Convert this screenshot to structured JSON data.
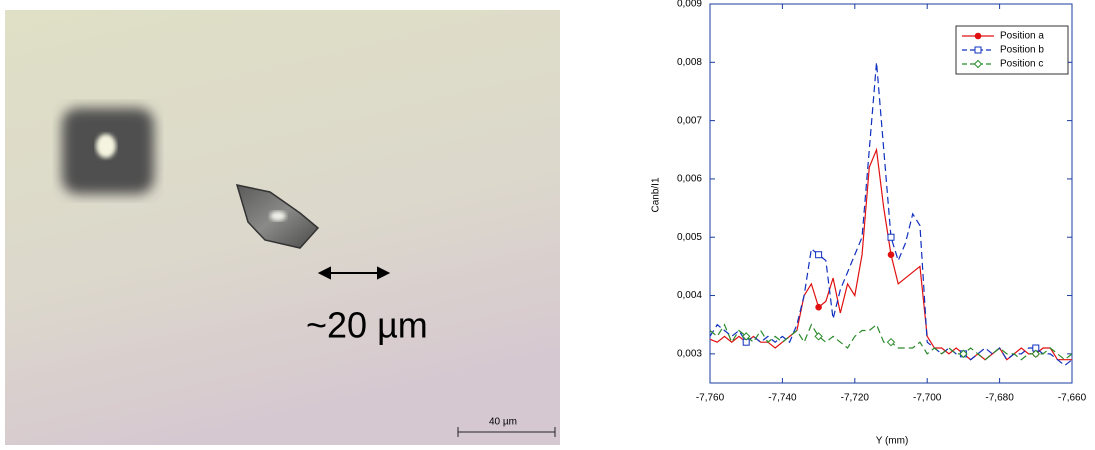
{
  "image": {
    "annotation": "~20 µm",
    "scale_bar": "40 µm"
  },
  "chart_data": {
    "type": "line",
    "x_label": "Y (mm)",
    "y_label": "Canb/I1",
    "x": [
      -7.76,
      -7.758,
      -7.756,
      -7.754,
      -7.752,
      -7.75,
      -7.748,
      -7.746,
      -7.744,
      -7.742,
      -7.74,
      -7.738,
      -7.736,
      -7.734,
      -7.732,
      -7.73,
      -7.728,
      -7.726,
      -7.724,
      -7.722,
      -7.72,
      -7.718,
      -7.716,
      -7.714,
      -7.712,
      -7.71,
      -7.708,
      -7.706,
      -7.704,
      -7.702,
      -7.7,
      -7.698,
      -7.696,
      -7.694,
      -7.692,
      -7.69,
      -7.688,
      -7.686,
      -7.684,
      -7.682,
      -7.68,
      -7.678,
      -7.676,
      -7.674,
      -7.672,
      -7.67,
      -7.668,
      -7.666,
      -7.664,
      -7.662,
      -7.66
    ],
    "series": [
      {
        "name": "Position a",
        "color": "#e01010",
        "line_style": "solid",
        "marker": "circle",
        "values": [
          0.00325,
          0.0032,
          0.0033,
          0.0032,
          0.0033,
          0.0032,
          0.0033,
          0.0032,
          0.0032,
          0.0031,
          0.0032,
          0.0033,
          0.0034,
          0.004,
          0.0042,
          0.0038,
          0.0039,
          0.0043,
          0.0037,
          0.0042,
          0.004,
          0.0047,
          0.0062,
          0.0065,
          0.0055,
          0.0047,
          0.0042,
          0.0043,
          0.0044,
          0.0045,
          0.0033,
          0.0031,
          0.0031,
          0.003,
          0.0031,
          0.003,
          0.0029,
          0.003,
          0.0029,
          0.003,
          0.0031,
          0.0029,
          0.003,
          0.0031,
          0.003,
          0.003,
          0.0031,
          0.0031,
          0.0029,
          0.0029,
          0.0029
        ]
      },
      {
        "name": "Position b",
        "color": "#1030c0",
        "line_style": "dashed",
        "marker": "square",
        "values": [
          0.0033,
          0.0035,
          0.0034,
          0.0033,
          0.0034,
          0.0032,
          0.0033,
          0.0032,
          0.0033,
          0.0032,
          0.0033,
          0.0032,
          0.0035,
          0.004,
          0.0048,
          0.0047,
          0.0046,
          0.0036,
          0.0041,
          0.0044,
          0.0047,
          0.005,
          0.0065,
          0.008,
          0.0065,
          0.005,
          0.0046,
          0.0049,
          0.0054,
          0.0052,
          0.0032,
          0.0031,
          0.003,
          0.0031,
          0.003,
          0.003,
          0.0029,
          0.003,
          0.0031,
          0.003,
          0.0031,
          0.0029,
          0.003,
          0.003,
          0.0031,
          0.0031,
          0.003,
          0.003,
          0.0029,
          0.0028,
          0.0029
        ]
      },
      {
        "name": "Position c",
        "color": "#2a8a2a",
        "line_style": "dashed",
        "marker": "diamond",
        "values": [
          0.0034,
          0.0033,
          0.0035,
          0.0032,
          0.0034,
          0.0033,
          0.0032,
          0.0034,
          0.0032,
          0.0033,
          0.0032,
          0.0033,
          0.0034,
          0.0032,
          0.0035,
          0.0033,
          0.0032,
          0.0033,
          0.0032,
          0.0031,
          0.0033,
          0.0034,
          0.0034,
          0.0035,
          0.0032,
          0.0032,
          0.0031,
          0.0031,
          0.0031,
          0.0032,
          0.003,
          0.0031,
          0.003,
          0.0031,
          0.003,
          0.003,
          0.0031,
          0.003,
          0.0029,
          0.003,
          0.0031,
          0.003,
          0.003,
          0.0029,
          0.003,
          0.003,
          0.003,
          0.0031,
          0.003,
          0.0029,
          0.003
        ]
      }
    ],
    "xlim": [
      -7.76,
      -7.66
    ],
    "xticks": [
      {
        "value": -7.76,
        "label": "-7,760"
      },
      {
        "value": -7.74,
        "label": "-7,740"
      },
      {
        "value": -7.72,
        "label": "-7,720"
      },
      {
        "value": -7.7,
        "label": "-7,700"
      },
      {
        "value": -7.68,
        "label": "-7,680"
      },
      {
        "value": -7.66,
        "label": "-7,660"
      }
    ],
    "ylim": [
      0.0025,
      0.009
    ],
    "yticks": [
      {
        "value": 0.003,
        "label": "0,003"
      },
      {
        "value": 0.004,
        "label": "0,004"
      },
      {
        "value": 0.005,
        "label": "0,005"
      },
      {
        "value": 0.006,
        "label": "0,006"
      },
      {
        "value": 0.007,
        "label": "0,007"
      },
      {
        "value": 0.008,
        "label": "0,008"
      },
      {
        "value": 0.009,
        "label": "0,009"
      }
    ],
    "legend": "upper right"
  }
}
